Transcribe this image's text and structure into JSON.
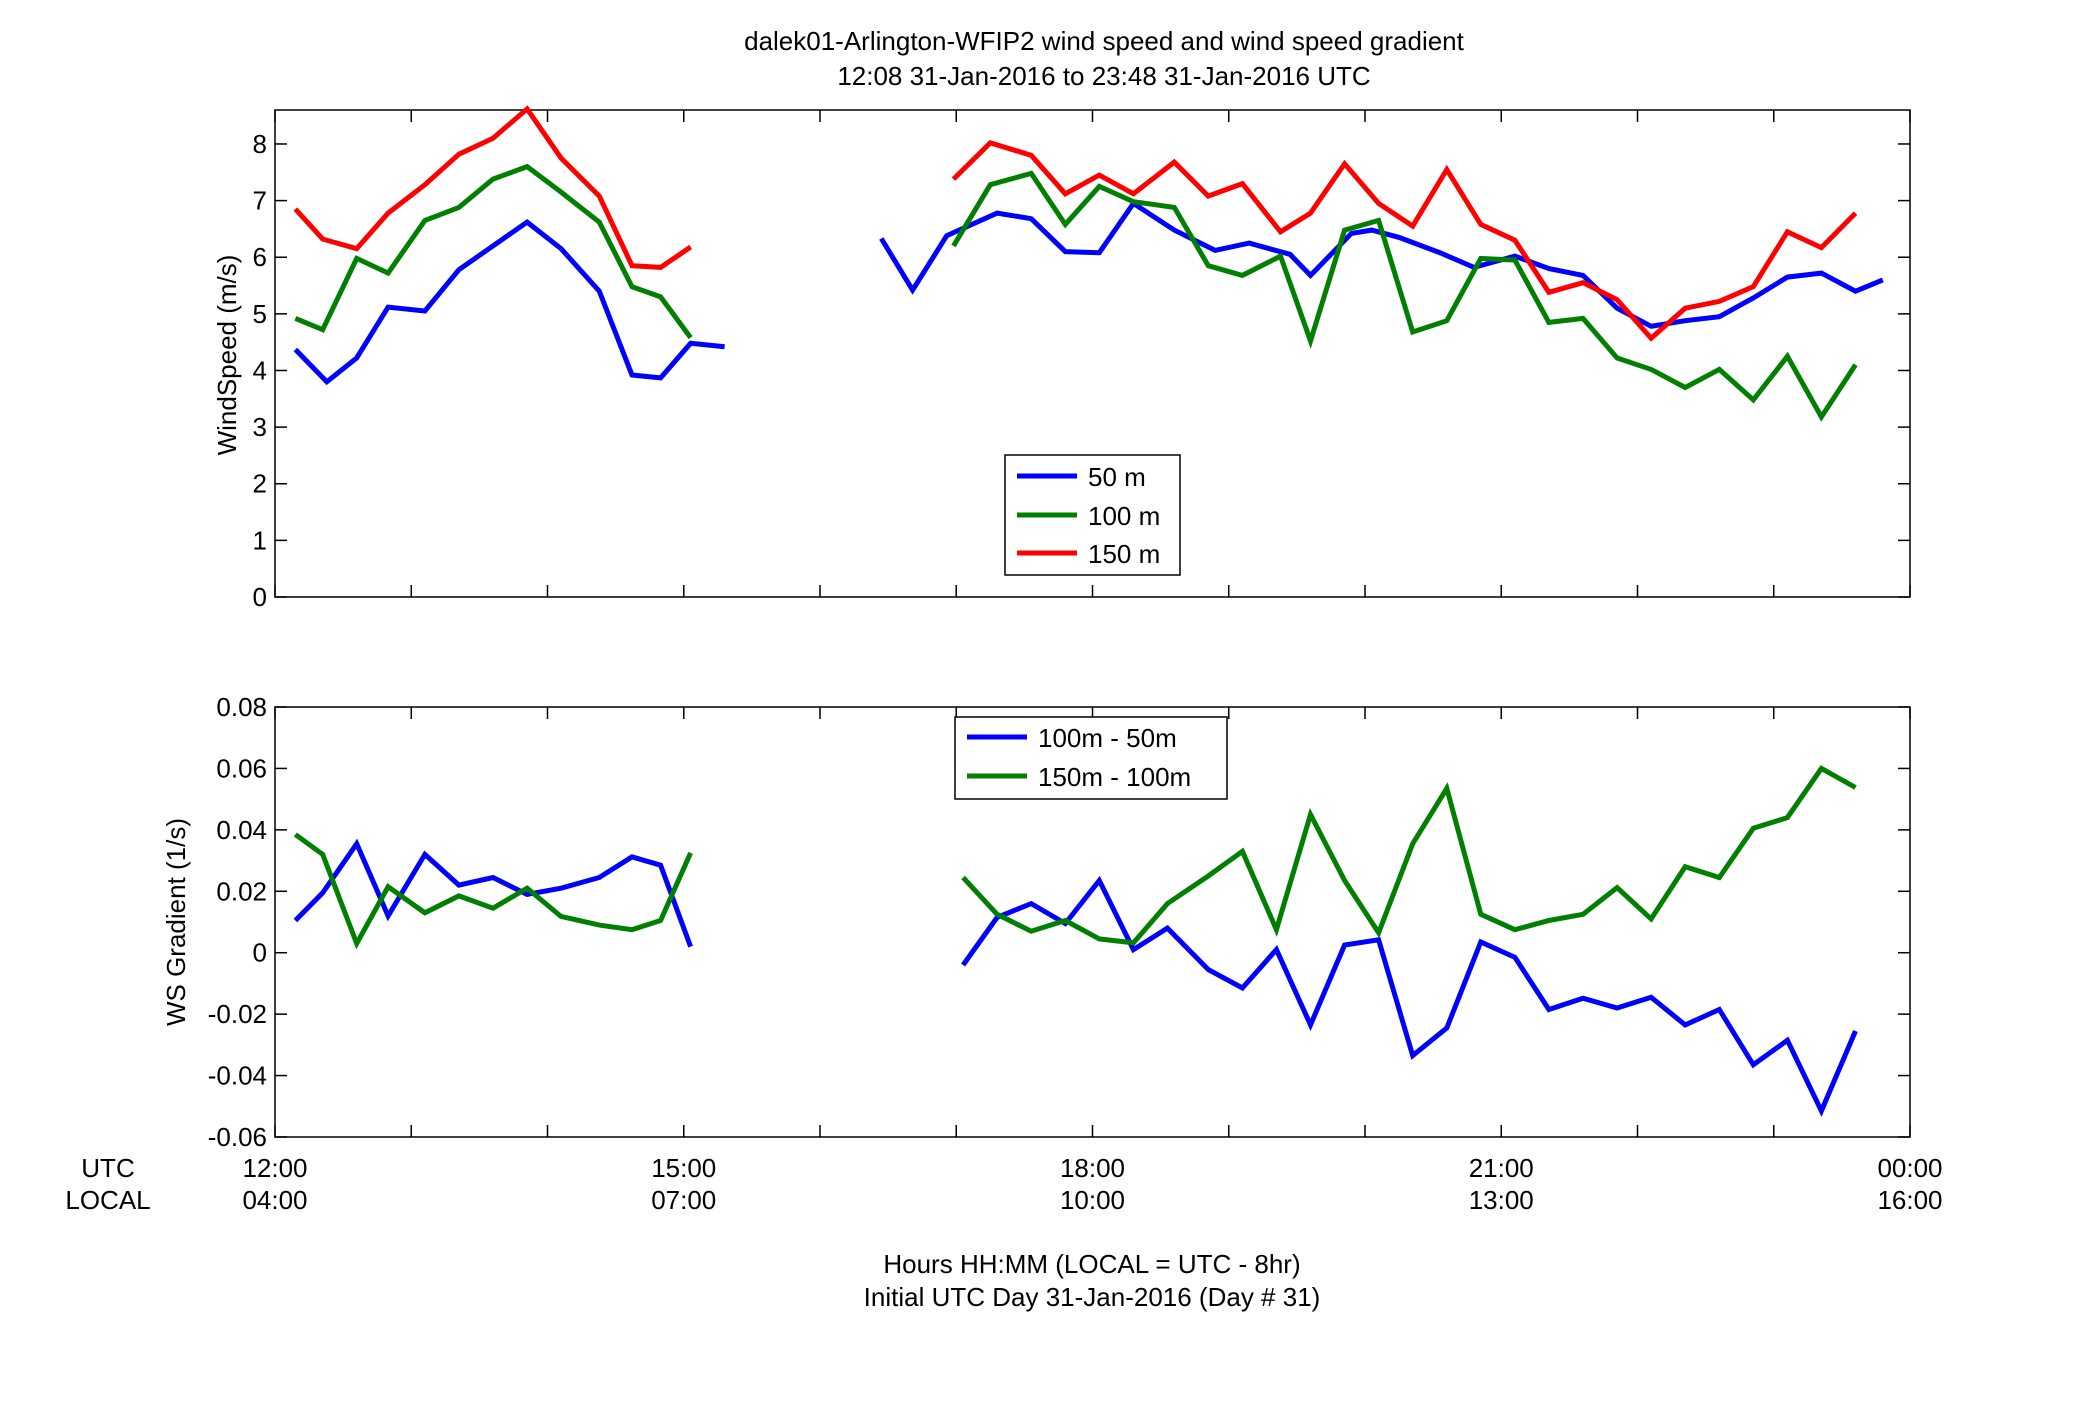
{
  "title_line1": "dalek01-Arlington-WFIP2  wind speed and wind speed gradient",
  "title_line2": "12:08 31-Jan-2016 to 23:48 31-Jan-2016  UTC",
  "xlabel_line1": "Hours HH:MM  (LOCAL = UTC - 8hr)",
  "xlabel_line2": "Initial UTC Day 31-Jan-2016 (Day # 31)",
  "row_label_utc": "UTC",
  "row_label_local": "LOCAL",
  "colors": {
    "blue": "#0000ff",
    "green": "#007f00",
    "red": "#ff0000"
  },
  "chart_data": [
    {
      "type": "line",
      "ylabel": "WindSpeed (m/s)",
      "xlim": [
        12.0,
        24.0
      ],
      "ylim": [
        0,
        8.6
      ],
      "yticks": [
        "0",
        "1",
        "2",
        "3",
        "4",
        "5",
        "6",
        "7",
        "8"
      ],
      "xticks_utc": [
        "12:00",
        "15:00",
        "18:00",
        "21:00",
        "00:00"
      ],
      "xticks_local": [
        "04:00",
        "07:00",
        "10:00",
        "13:00",
        "16:00"
      ],
      "grid": false,
      "legend": "center",
      "series": [
        {
          "name": "50 m",
          "color": "blue",
          "points": [
            [
              12.15,
              4.37
            ],
            [
              12.38,
              3.8
            ],
            [
              12.6,
              4.22
            ],
            [
              12.83,
              5.12
            ],
            [
              13.1,
              5.05
            ],
            [
              13.35,
              5.78
            ],
            [
              13.6,
              6.2
            ],
            [
              13.85,
              6.62
            ],
            [
              14.1,
              6.15
            ],
            [
              14.38,
              5.4
            ],
            [
              14.62,
              3.92
            ],
            [
              14.83,
              3.87
            ],
            [
              15.05,
              4.48
            ],
            [
              15.3,
              4.42
            ],
            null,
            [
              16.45,
              6.33
            ],
            [
              16.68,
              5.42
            ],
            [
              16.93,
              6.38
            ],
            [
              17.3,
              6.78
            ],
            [
              17.55,
              6.68
            ],
            [
              17.8,
              6.1
            ],
            [
              18.05,
              6.08
            ],
            [
              18.3,
              6.95
            ],
            [
              18.6,
              6.48
            ],
            [
              18.9,
              6.12
            ],
            [
              19.15,
              6.25
            ],
            [
              19.45,
              6.05
            ],
            [
              19.6,
              5.68
            ],
            [
              19.9,
              6.42
            ],
            [
              20.05,
              6.48
            ],
            [
              20.25,
              6.35
            ],
            [
              20.55,
              6.08
            ],
            [
              20.8,
              5.82
            ],
            [
              21.1,
              6.02
            ],
            [
              21.35,
              5.8
            ],
            [
              21.6,
              5.68
            ],
            [
              21.85,
              5.1
            ],
            [
              22.1,
              4.78
            ],
            [
              22.35,
              4.88
            ],
            [
              22.6,
              4.95
            ],
            [
              22.85,
              5.28
            ],
            [
              23.1,
              5.65
            ],
            [
              23.35,
              5.72
            ],
            [
              23.6,
              5.4
            ],
            [
              23.8,
              5.6
            ]
          ]
        },
        {
          "name": "100 m",
          "color": "green",
          "points": [
            [
              12.15,
              4.92
            ],
            [
              12.35,
              4.72
            ],
            [
              12.6,
              5.98
            ],
            [
              12.83,
              5.72
            ],
            [
              13.1,
              6.65
            ],
            [
              13.35,
              6.88
            ],
            [
              13.6,
              7.38
            ],
            [
              13.85,
              7.6
            ],
            [
              14.1,
              7.15
            ],
            [
              14.38,
              6.62
            ],
            [
              14.62,
              5.48
            ],
            [
              14.83,
              5.3
            ],
            [
              15.05,
              4.58
            ],
            null,
            [
              16.98,
              6.2
            ],
            [
              17.25,
              7.28
            ],
            [
              17.55,
              7.48
            ],
            [
              17.8,
              6.58
            ],
            [
              18.05,
              7.25
            ],
            [
              18.3,
              6.98
            ],
            [
              18.6,
              6.88
            ],
            [
              18.85,
              5.85
            ],
            [
              19.1,
              5.68
            ],
            [
              19.38,
              6.02
            ],
            [
              19.6,
              4.52
            ],
            [
              19.85,
              6.48
            ],
            [
              20.1,
              6.65
            ],
            [
              20.35,
              4.68
            ],
            [
              20.6,
              4.88
            ],
            [
              20.85,
              5.98
            ],
            [
              21.1,
              5.95
            ],
            [
              21.35,
              4.85
            ],
            [
              21.6,
              4.92
            ],
            [
              21.85,
              4.22
            ],
            [
              22.1,
              4.02
            ],
            [
              22.35,
              3.7
            ],
            [
              22.6,
              4.02
            ],
            [
              22.85,
              3.48
            ],
            [
              23.1,
              4.25
            ],
            [
              23.35,
              3.18
            ],
            [
              23.6,
              4.1
            ]
          ]
        },
        {
          "name": "150 m",
          "color": "red",
          "points": [
            [
              12.15,
              6.85
            ],
            [
              12.35,
              6.32
            ],
            [
              12.6,
              6.15
            ],
            [
              12.83,
              6.78
            ],
            [
              13.1,
              7.28
            ],
            [
              13.35,
              7.82
            ],
            [
              13.6,
              8.1
            ],
            [
              13.85,
              8.62
            ],
            [
              14.1,
              7.75
            ],
            [
              14.38,
              7.08
            ],
            [
              14.62,
              5.85
            ],
            [
              14.83,
              5.82
            ],
            [
              15.05,
              6.18
            ],
            null,
            [
              16.98,
              7.38
            ],
            [
              17.25,
              8.02
            ],
            [
              17.55,
              7.8
            ],
            [
              17.8,
              7.12
            ],
            [
              18.05,
              7.45
            ],
            [
              18.3,
              7.12
            ],
            [
              18.6,
              7.68
            ],
            [
              18.85,
              7.08
            ],
            [
              19.1,
              7.3
            ],
            [
              19.38,
              6.45
            ],
            [
              19.6,
              6.78
            ],
            [
              19.85,
              7.65
            ],
            [
              20.1,
              6.95
            ],
            [
              20.35,
              6.55
            ],
            [
              20.6,
              7.55
            ],
            [
              20.85,
              6.58
            ],
            [
              21.1,
              6.3
            ],
            [
              21.35,
              5.38
            ],
            [
              21.6,
              5.55
            ],
            [
              21.85,
              5.25
            ],
            [
              22.1,
              4.57
            ],
            [
              22.35,
              5.1
            ],
            [
              22.6,
              5.22
            ],
            [
              22.85,
              5.48
            ],
            [
              23.1,
              6.45
            ],
            [
              23.35,
              6.17
            ],
            [
              23.6,
              6.78
            ]
          ]
        }
      ]
    },
    {
      "type": "line",
      "ylabel": "WS Gradient (1/s)",
      "xlim": [
        12.0,
        24.0
      ],
      "ylim": [
        -0.06,
        0.08
      ],
      "yticks": [
        "-0.06",
        "-0.04",
        "-0.02",
        "0",
        "0.02",
        "0.04",
        "0.06",
        "0.08"
      ],
      "xticks_utc": [
        "12:00",
        "15:00",
        "18:00",
        "21:00",
        "00:00"
      ],
      "xticks_local": [
        "04:00",
        "07:00",
        "10:00",
        "13:00",
        "16:00"
      ],
      "grid": false,
      "legend": "top-center",
      "series": [
        {
          "name": "100m - 50m",
          "color": "blue",
          "points": [
            [
              12.15,
              0.0105
            ],
            [
              12.35,
              0.0195
            ],
            [
              12.6,
              0.0355
            ],
            [
              12.83,
              0.012
            ],
            [
              13.1,
              0.032
            ],
            [
              13.35,
              0.022
            ],
            [
              13.6,
              0.0245
            ],
            [
              13.85,
              0.019
            ],
            [
              14.1,
              0.021
            ],
            [
              14.38,
              0.0245
            ],
            [
              14.62,
              0.0312
            ],
            [
              14.83,
              0.0285
            ],
            [
              15.05,
              0.002
            ],
            null,
            [
              17.05,
              -0.004
            ],
            [
              17.3,
              0.0115
            ],
            [
              17.55,
              0.016
            ],
            [
              17.8,
              0.0095
            ],
            [
              18.05,
              0.0235
            ],
            [
              18.3,
              0.001
            ],
            [
              18.55,
              0.008
            ],
            [
              18.85,
              -0.0055
            ],
            [
              19.1,
              -0.0115
            ],
            [
              19.35,
              0.001
            ],
            [
              19.6,
              -0.0235
            ],
            [
              19.85,
              0.0025
            ],
            [
              20.1,
              0.0042
            ],
            [
              20.35,
              -0.0335
            ],
            [
              20.6,
              -0.0245
            ],
            [
              20.85,
              0.0035
            ],
            [
              21.1,
              -0.0015
            ],
            [
              21.35,
              -0.0185
            ],
            [
              21.6,
              -0.0148
            ],
            [
              21.85,
              -0.018
            ],
            [
              22.1,
              -0.0145
            ],
            [
              22.35,
              -0.0235
            ],
            [
              22.6,
              -0.0185
            ],
            [
              22.85,
              -0.0365
            ],
            [
              23.1,
              -0.0285
            ],
            [
              23.35,
              -0.0515
            ],
            [
              23.6,
              -0.0255
            ]
          ]
        },
        {
          "name": "150m - 100m",
          "color": "green",
          "points": [
            [
              12.15,
              0.0385
            ],
            [
              12.35,
              0.032
            ],
            [
              12.6,
              0.003
            ],
            [
              12.83,
              0.0215
            ],
            [
              13.1,
              0.013
            ],
            [
              13.35,
              0.0185
            ],
            [
              13.6,
              0.0145
            ],
            [
              13.85,
              0.021
            ],
            [
              14.1,
              0.0118
            ],
            [
              14.38,
              0.009
            ],
            [
              14.62,
              0.0075
            ],
            [
              14.83,
              0.0105
            ],
            [
              15.05,
              0.0325
            ],
            null,
            [
              17.05,
              0.0245
            ],
            [
              17.3,
              0.0125
            ],
            [
              17.55,
              0.007
            ],
            [
              17.8,
              0.0105
            ],
            [
              18.05,
              0.0045
            ],
            [
              18.3,
              0.0032
            ],
            [
              18.55,
              0.016
            ],
            [
              18.85,
              0.025
            ],
            [
              19.1,
              0.033
            ],
            [
              19.35,
              0.0075
            ],
            [
              19.6,
              0.045
            ],
            [
              19.85,
              0.0235
            ],
            [
              20.1,
              0.0065
            ],
            [
              20.35,
              0.0355
            ],
            [
              20.6,
              0.0535
            ],
            [
              20.85,
              0.0125
            ],
            [
              21.1,
              0.0075
            ],
            [
              21.35,
              0.0105
            ],
            [
              21.6,
              0.0125
            ],
            [
              21.85,
              0.0212
            ],
            [
              22.1,
              0.011
            ],
            [
              22.35,
              0.028
            ],
            [
              22.6,
              0.0245
            ],
            [
              22.85,
              0.0405
            ],
            [
              23.1,
              0.044
            ],
            [
              23.35,
              0.06
            ],
            [
              23.6,
              0.0538
            ]
          ]
        }
      ]
    }
  ]
}
